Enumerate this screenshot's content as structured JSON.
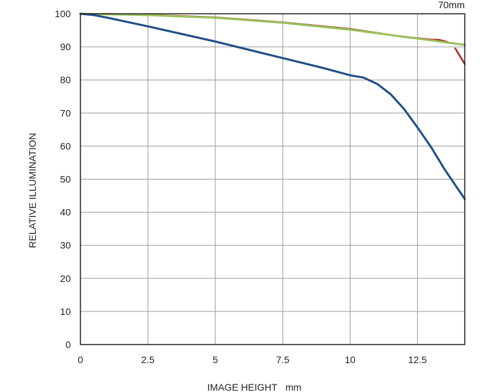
{
  "chart_data": {
    "type": "line",
    "title": "70mm",
    "xlabel": "IMAGE HEIGHT   mm",
    "ylabel": "RELATIVE ILLUMINATION",
    "xlim": [
      0,
      14.25
    ],
    "ylim": [
      0,
      100
    ],
    "xticks": [
      0,
      2.5,
      5,
      7.5,
      10,
      12.5
    ],
    "xtick_labels": [
      "0",
      "2.5",
      "5",
      "7.5",
      "10",
      "12.5"
    ],
    "yticks": [
      0,
      10,
      20,
      30,
      40,
      50,
      60,
      70,
      80,
      90,
      100
    ],
    "ytick_labels": [
      "0",
      "10",
      "20",
      "30",
      "40",
      "50",
      "60",
      "70",
      "80",
      "90",
      "100"
    ],
    "grid": true,
    "series": [
      {
        "color": "#b0271e",
        "width": 2.6,
        "segments": [
          [
            [
              0,
              100
            ],
            [
              2.5,
              99.7
            ],
            [
              5,
              98.9
            ],
            [
              7.5,
              97.4
            ],
            [
              10,
              95.4
            ],
            [
              12,
              93
            ],
            [
              13,
              92.2
            ],
            [
              13.3,
              92.1
            ],
            [
              13.6,
              91.5
            ]
          ],
          [
            [
              13.9,
              89.5
            ],
            [
              14.25,
              84.8
            ]
          ]
        ]
      },
      {
        "color": "#99c05a",
        "width": 3,
        "segments": [
          [
            [
              0,
              100
            ],
            [
              2.5,
              99.6
            ],
            [
              5,
              98.8
            ],
            [
              7.5,
              97.3
            ],
            [
              10,
              95.2
            ],
            [
              12.5,
              92.5
            ],
            [
              14.25,
              90.6
            ]
          ]
        ]
      },
      {
        "color": "#1f4e85",
        "width": 3,
        "segments": [
          [
            [
              0,
              100
            ],
            [
              0.5,
              99.6
            ],
            [
              1,
              98.8
            ],
            [
              2.5,
              96.2
            ],
            [
              5,
              91.6
            ],
            [
              7.5,
              86.6
            ],
            [
              9,
              83.6
            ],
            [
              10,
              81.4
            ],
            [
              10.5,
              80.7
            ],
            [
              11,
              78.8
            ],
            [
              11.5,
              75.7
            ],
            [
              12,
              71.2
            ],
            [
              12.5,
              65.6
            ],
            [
              13,
              59.7
            ],
            [
              13.5,
              53
            ],
            [
              14.25,
              44
            ]
          ]
        ]
      }
    ]
  }
}
